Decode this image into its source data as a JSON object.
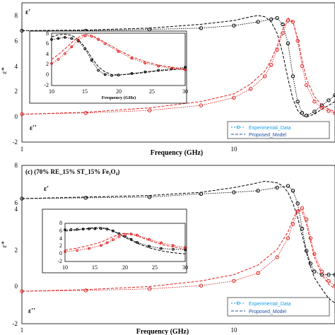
{
  "chart_data": [
    {
      "type": "line",
      "title": "",
      "xlabel": "Frequency (GHz)",
      "ylabel": "ε*",
      "x_scale": "log",
      "xlim": [
        1,
        30
      ],
      "ylim": [
        -2,
        9
      ],
      "x_tick_labels": [
        "1",
        "10"
      ],
      "y_tick_labels": [
        "-2",
        "0",
        "2",
        "4",
        "6",
        "8"
      ],
      "annotations": [
        "ε'",
        "ε''"
      ],
      "legend": {
        "position": "bottom-right",
        "entries": [
          "Experimental_Data",
          "Proposed_Model"
        ]
      },
      "series": [
        {
          "name": "ε'",
          "role": "Experimental_Data",
          "color": "#000000",
          "x": [
            1,
            2,
            4,
            7,
            10,
            13,
            15,
            16,
            17,
            18,
            19,
            20,
            21,
            22,
            24,
            26,
            28,
            30
          ],
          "y": [
            6.8,
            6.8,
            6.9,
            7.0,
            7.2,
            7.5,
            7.7,
            7.8,
            7.3,
            5.8,
            3.2,
            1.2,
            0.3,
            0.1,
            0.4,
            0.9,
            1.3,
            1.7
          ]
        },
        {
          "name": "ε'",
          "role": "Proposed_Model",
          "color": "#000000",
          "x": [
            1,
            2,
            4,
            7,
            10,
            12,
            13,
            14,
            15,
            16,
            17,
            18,
            19,
            20,
            21,
            22,
            24,
            26,
            28,
            30
          ],
          "y": [
            6.8,
            6.85,
            7.0,
            7.3,
            7.6,
            7.9,
            8.0,
            7.9,
            7.5,
            6.6,
            5.0,
            3.0,
            1.4,
            0.5,
            0.1,
            0.0,
            0.2,
            0.6,
            0.9,
            1.2
          ]
        },
        {
          "name": "ε''",
          "role": "Experimental_Data",
          "color": "#e02020",
          "x": [
            1,
            2,
            4,
            7,
            10,
            12,
            14,
            15,
            16,
            17,
            18,
            19,
            20,
            21,
            22,
            24,
            26,
            28,
            30
          ],
          "y": [
            0.2,
            0.3,
            0.5,
            0.9,
            1.5,
            2.2,
            3.2,
            4.1,
            5.3,
            6.6,
            7.6,
            7.5,
            6.0,
            4.0,
            2.5,
            1.2,
            0.7,
            0.45,
            0.3
          ]
        },
        {
          "name": "ε''",
          "role": "Proposed_Model",
          "color": "#e02020",
          "x": [
            1,
            2,
            4,
            7,
            10,
            12,
            14,
            15,
            16,
            17,
            18,
            19,
            20,
            21,
            22,
            24,
            26,
            28,
            30
          ],
          "y": [
            0.2,
            0.35,
            0.7,
            1.2,
            1.8,
            2.6,
            3.6,
            4.5,
            5.6,
            6.9,
            7.8,
            7.5,
            6.2,
            4.5,
            3.0,
            1.6,
            0.9,
            0.6,
            0.4
          ]
        }
      ],
      "inset": {
        "xlim": [
          10,
          30
        ],
        "ylim": [
          -2,
          8
        ],
        "x_tick_labels": [
          "10",
          "15",
          "20",
          "25",
          "30"
        ],
        "y_tick_labels": [
          "-2",
          "0",
          "2",
          "4",
          "6",
          "8"
        ],
        "xlabel": "Frequency (GHz)",
        "series": [
          {
            "name": "ε'",
            "role": "Experimental_Data",
            "color": "#000000",
            "x": [
              10,
              11,
              12,
              13,
              14,
              15,
              16,
              17,
              18,
              19,
              20,
              22,
              24,
              26,
              28,
              30
            ],
            "y": [
              6.8,
              7.0,
              7.2,
              7.0,
              6.5,
              5.0,
              2.8,
              0.9,
              0.1,
              -0.1,
              0.0,
              0.3,
              0.6,
              0.9,
              1.2,
              1.5
            ]
          },
          {
            "name": "ε'",
            "role": "Proposed_Model",
            "color": "#000000",
            "x": [
              10,
              11,
              12,
              13,
              14,
              15,
              16,
              17,
              18,
              19,
              20,
              22,
              24,
              26,
              28,
              30
            ],
            "y": [
              7.3,
              7.7,
              7.8,
              7.6,
              6.8,
              5.3,
              3.3,
              1.6,
              0.6,
              0.1,
              0.0,
              0.2,
              0.5,
              0.8,
              1.0,
              1.2
            ]
          },
          {
            "name": "ε''",
            "role": "Experimental_Data",
            "color": "#e02020",
            "x": [
              10,
              11,
              12,
              13,
              14,
              15,
              16,
              17,
              18,
              20,
              22,
              24,
              26,
              28,
              30
            ],
            "y": [
              2.2,
              3.0,
              4.1,
              5.4,
              6.7,
              7.5,
              7.4,
              6.8,
              6.0,
              4.5,
              3.2,
              2.3,
              1.7,
              1.3,
              1.0
            ]
          },
          {
            "name": "ε''",
            "role": "Proposed_Model",
            "color": "#e02020",
            "x": [
              10,
              11,
              12,
              13,
              14,
              15,
              16,
              17,
              18,
              20,
              22,
              24,
              26,
              28,
              30
            ],
            "y": [
              3.0,
              3.9,
              5.0,
              6.2,
              7.2,
              7.8,
              7.6,
              7.0,
              6.2,
              4.8,
              3.5,
              2.6,
              1.9,
              1.5,
              1.1
            ]
          }
        ]
      }
    },
    {
      "type": "line",
      "title": "(c) (70% RE_15% ST_15% Fe₃O₄)",
      "xlabel": "Frequency (GHz)",
      "ylabel": "ε*",
      "x_scale": "log",
      "xlim": [
        1,
        30
      ],
      "ylim": [
        -2,
        8
      ],
      "x_tick_labels": [
        "1",
        "10"
      ],
      "y_tick_labels": [
        "-2",
        "0",
        "2",
        "4",
        "6",
        "8"
      ],
      "annotations": [
        "ε'",
        "ε''"
      ],
      "legend": {
        "position": "bottom-right",
        "entries": [
          "Experimental_Data",
          "Proposed_Model"
        ]
      },
      "series": [
        {
          "name": "ε'",
          "role": "Experimental_Data",
          "color": "#000000",
          "x": [
            1,
            2,
            4,
            7,
            10,
            13,
            16,
            18,
            19,
            20,
            21,
            22,
            23,
            24,
            26,
            28,
            30
          ],
          "y": [
            5.9,
            5.95,
            6.0,
            6.2,
            6.3,
            6.4,
            6.6,
            6.7,
            6.4,
            5.6,
            4.0,
            2.6,
            1.8,
            1.3,
            1.1,
            1.1,
            1.1
          ]
        },
        {
          "name": "ε'",
          "role": "Proposed_Model",
          "color": "#000000",
          "x": [
            1,
            2,
            4,
            7,
            10,
            12,
            14,
            16,
            17,
            18,
            19,
            20,
            21,
            22,
            23,
            24,
            26,
            28,
            30
          ],
          "y": [
            5.9,
            6.0,
            6.1,
            6.3,
            6.6,
            6.8,
            7.0,
            6.9,
            6.7,
            6.3,
            5.6,
            4.7,
            3.6,
            2.5,
            1.6,
            0.9,
            0.2,
            -0.4,
            -0.7
          ]
        },
        {
          "name": "ε''",
          "role": "Experimental_Data",
          "color": "#e02020",
          "x": [
            1,
            2,
            4,
            7,
            10,
            13,
            16,
            18,
            19,
            20,
            21,
            22,
            23,
            24,
            26,
            28,
            30
          ],
          "y": [
            0.05,
            0.1,
            0.2,
            0.4,
            0.7,
            1.2,
            2.2,
            3.4,
            4.3,
            5.1,
            5.3,
            4.6,
            3.4,
            2.4,
            1.3,
            0.7,
            0.4
          ]
        },
        {
          "name": "ε''",
          "role": "Proposed_Model",
          "color": "#e02020",
          "x": [
            1,
            2,
            4,
            7,
            10,
            13,
            16,
            18,
            19,
            20,
            21,
            22,
            23,
            24,
            26,
            28,
            30
          ],
          "y": [
            0.05,
            0.15,
            0.35,
            0.7,
            1.1,
            1.7,
            2.7,
            3.8,
            4.6,
            5.2,
            5.1,
            4.3,
            3.2,
            2.2,
            1.1,
            0.5,
            0.2
          ]
        }
      ],
      "inset": {
        "xlim": [
          10,
          30
        ],
        "ylim": [
          -2,
          8
        ],
        "x_tick_labels": [
          "10",
          "15",
          "20",
          "25",
          "30"
        ],
        "y_tick_labels": [
          "-2",
          "0",
          "2",
          "4",
          "6",
          "8"
        ],
        "xlabel": "",
        "series": [
          {
            "name": "ε'",
            "role": "Experimental_Data",
            "color": "#000000",
            "x": [
              10,
              11,
              12,
              13,
              14,
              15,
              16,
              17,
              18,
              19,
              20,
              21,
              22,
              24,
              26,
              28,
              30
            ],
            "y": [
              6.3,
              6.35,
              6.4,
              6.5,
              6.55,
              6.6,
              6.65,
              6.5,
              6.0,
              5.3,
              4.6,
              3.8,
              3.0,
              2.0,
              1.4,
              1.2,
              1.1
            ]
          },
          {
            "name": "ε'",
            "role": "Proposed_Model",
            "color": "#000000",
            "x": [
              10,
              11,
              12,
              13,
              14,
              15,
              16,
              17,
              18,
              19,
              20,
              22,
              24,
              26,
              28,
              30
            ],
            "y": [
              6.0,
              6.1,
              6.3,
              6.5,
              6.7,
              6.9,
              6.9,
              6.6,
              6.0,
              5.2,
              4.3,
              2.8,
              1.6,
              0.8,
              0.3,
              0.0
            ]
          },
          {
            "name": "ε''",
            "role": "Experimental_Data",
            "color": "#e02020",
            "x": [
              10,
              12,
              14,
              16,
              17,
              18,
              19,
              20,
              21,
              22,
              24,
              26,
              28,
              30
            ],
            "y": [
              0.6,
              0.9,
              1.4,
              2.2,
              2.9,
              3.7,
              4.5,
              5.1,
              5.2,
              4.9,
              3.8,
              2.9,
              2.2,
              1.7
            ]
          },
          {
            "name": "ε''",
            "role": "Proposed_Model",
            "color": "#e02020",
            "x": [
              10,
              12,
              14,
              16,
              17,
              18,
              19,
              20,
              21,
              22,
              24,
              26,
              28,
              30
            ],
            "y": [
              1.0,
              1.5,
              2.2,
              3.1,
              3.8,
              4.5,
              5.1,
              5.4,
              5.2,
              4.7,
              3.5,
              2.5,
              1.8,
              1.3
            ]
          }
        ]
      }
    }
  ]
}
